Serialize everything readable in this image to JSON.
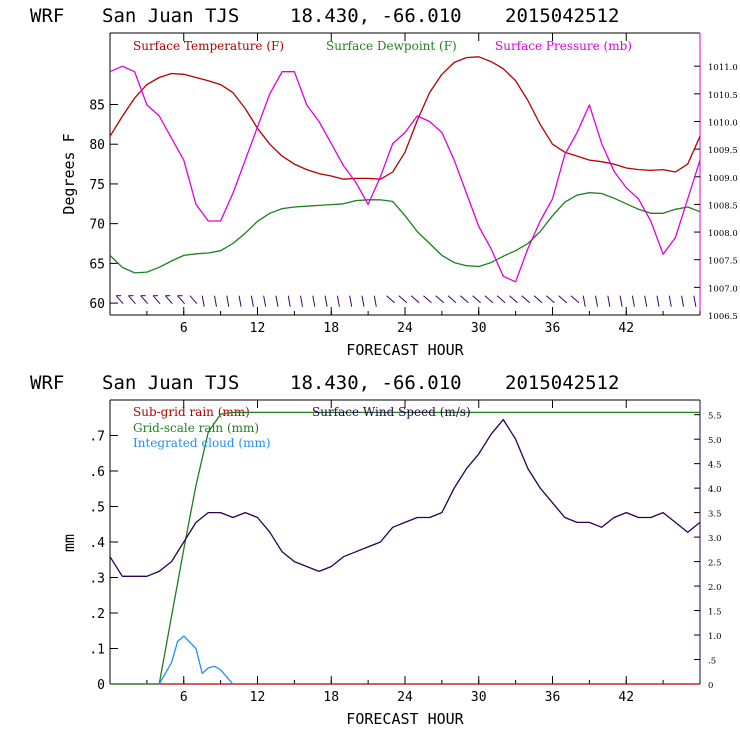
{
  "charts": [
    {
      "header": {
        "model": "WRF",
        "station": "San Juan TJS",
        "coords": "18.430, -66.010",
        "run": "2015042512"
      },
      "xlabel": "FORECAST HOUR",
      "ylabel": "Degrees F"
    },
    {
      "header": {
        "model": "WRF",
        "station": "San Juan TJS",
        "coords": "18.430, -66.010",
        "run": "2015042512"
      },
      "xlabel": "FORECAST HOUR",
      "ylabel": "mm"
    }
  ],
  "chart_data": [
    {
      "type": "line",
      "x_ticks": [
        "6",
        "12",
        "18",
        "24",
        "30",
        "36",
        "42"
      ],
      "xlim": [
        0,
        48
      ],
      "ylim": [
        58.5,
        94
      ],
      "y_ticks": [
        "60",
        "65",
        "70",
        "75",
        "80",
        "85"
      ],
      "y2lim": [
        1006.5,
        1011.6
      ],
      "y2_ticks": [
        "1006.5",
        "1007.0",
        "1007.5",
        "1008.0",
        "1008.5",
        "1009.0",
        "1009.5",
        "1010.0",
        "1010.5",
        "1011.0"
      ],
      "series": [
        {
          "name": "Surface Temperature (F)",
          "axis": "left",
          "color": "#b40000",
          "points": [
            [
              0,
              81
            ],
            [
              1,
              83.5
            ],
            [
              2,
              85.8
            ],
            [
              3,
              87.5
            ],
            [
              4,
              88.4
            ],
            [
              5,
              88.9
            ],
            [
              6,
              88.8
            ],
            [
              7,
              88.4
            ],
            [
              8,
              88
            ],
            [
              9,
              87.5
            ],
            [
              10,
              86.5
            ],
            [
              11,
              84.5
            ],
            [
              12,
              82
            ],
            [
              13,
              80
            ],
            [
              14,
              78.5
            ],
            [
              15,
              77.5
            ],
            [
              16,
              76.8
            ],
            [
              17,
              76.3
            ],
            [
              18,
              76
            ],
            [
              19,
              75.6
            ],
            [
              20,
              75.7
            ],
            [
              21,
              75.7
            ],
            [
              22,
              75.6
            ],
            [
              23,
              76.5
            ],
            [
              24,
              79
            ],
            [
              25,
              83
            ],
            [
              26,
              86.5
            ],
            [
              27,
              88.8
            ],
            [
              28,
              90.3
            ],
            [
              29,
              90.9
            ],
            [
              30,
              91
            ],
            [
              31,
              90.4
            ],
            [
              32,
              89.5
            ],
            [
              33,
              88
            ],
            [
              34,
              85.5
            ],
            [
              35,
              82.5
            ],
            [
              36,
              80
            ],
            [
              37,
              79
            ],
            [
              38,
              78.5
            ],
            [
              39,
              78
            ],
            [
              40,
              77.8
            ],
            [
              41,
              77.5
            ],
            [
              42,
              77
            ],
            [
              43,
              76.8
            ],
            [
              44,
              76.7
            ],
            [
              45,
              76.8
            ],
            [
              46,
              76.5
            ],
            [
              47,
              77.5
            ],
            [
              48,
              81
            ]
          ]
        },
        {
          "name": "Surface Dewpoint (F)",
          "axis": "left",
          "color": "#1f7f1f",
          "points": [
            [
              0,
              66
            ],
            [
              1,
              64.5
            ],
            [
              2,
              63.8
            ],
            [
              3,
              63.9
            ],
            [
              4,
              64.5
            ],
            [
              5,
              65.3
            ],
            [
              6,
              66
            ],
            [
              7,
              66.2
            ],
            [
              8,
              66.3
            ],
            [
              9,
              66.6
            ],
            [
              10,
              67.5
            ],
            [
              11,
              68.8
            ],
            [
              12,
              70.3
            ],
            [
              13,
              71.3
            ],
            [
              14,
              71.9
            ],
            [
              15,
              72.1
            ],
            [
              16,
              72.2
            ],
            [
              17,
              72.3
            ],
            [
              18,
              72.4
            ],
            [
              19,
              72.5
            ],
            [
              20,
              72.9
            ],
            [
              21,
              73
            ],
            [
              22,
              73
            ],
            [
              23,
              72.8
            ],
            [
              24,
              71
            ],
            [
              25,
              69
            ],
            [
              26,
              67.5
            ],
            [
              27,
              66
            ],
            [
              28,
              65.1
            ],
            [
              29,
              64.7
            ],
            [
              30,
              64.6
            ],
            [
              31,
              65.1
            ],
            [
              32,
              65.9
            ],
            [
              33,
              66.6
            ],
            [
              34,
              67.5
            ],
            [
              35,
              69
            ],
            [
              36,
              71
            ],
            [
              37,
              72.7
            ],
            [
              38,
              73.6
            ],
            [
              39,
              73.9
            ],
            [
              40,
              73.8
            ],
            [
              41,
              73.2
            ],
            [
              42,
              72.5
            ],
            [
              43,
              71.8
            ],
            [
              44,
              71.3
            ],
            [
              45,
              71.3
            ],
            [
              46,
              71.8
            ],
            [
              47,
              72.1
            ],
            [
              48,
              71.5
            ]
          ]
        },
        {
          "name": "Surface Pressure (mb)",
          "axis": "right",
          "color": "#e000e0",
          "points": [
            [
              0,
              1010.9
            ],
            [
              1,
              1011
            ],
            [
              2,
              1010.9
            ],
            [
              3,
              1010.3
            ],
            [
              4,
              1010.1
            ],
            [
              5,
              1009.7
            ],
            [
              6,
              1009.3
            ],
            [
              7,
              1008.5
            ],
            [
              8,
              1008.2
            ],
            [
              9,
              1008.2
            ],
            [
              10,
              1008.7
            ],
            [
              11,
              1009.3
            ],
            [
              12,
              1009.9
            ],
            [
              13,
              1010.5
            ],
            [
              14,
              1010.9
            ],
            [
              15,
              1010.9
            ],
            [
              16,
              1010.3
            ],
            [
              17,
              1010.0
            ],
            [
              18,
              1009.6
            ],
            [
              19,
              1009.2
            ],
            [
              20,
              1008.9
            ],
            [
              21,
              1008.5
            ],
            [
              22,
              1009.0
            ],
            [
              23,
              1009.6
            ],
            [
              24,
              1009.8
            ],
            [
              25,
              1010.1
            ],
            [
              26,
              1010.0
            ],
            [
              27,
              1009.8
            ],
            [
              28,
              1009.3
            ],
            [
              29,
              1008.7
            ],
            [
              30,
              1008.1
            ],
            [
              31,
              1007.7
            ],
            [
              32,
              1007.2
            ],
            [
              33,
              1007.1
            ],
            [
              34,
              1007.7
            ],
            [
              35,
              1008.2
            ],
            [
              36,
              1008.6
            ],
            [
              37,
              1009.4
            ],
            [
              38,
              1009.8
            ],
            [
              39,
              1010.3
            ],
            [
              40,
              1009.6
            ],
            [
              41,
              1009.1
            ],
            [
              42,
              1008.8
            ],
            [
              43,
              1008.6
            ],
            [
              44,
              1008.2
            ],
            [
              45,
              1007.6
            ],
            [
              46,
              1007.9
            ],
            [
              47,
              1008.6
            ],
            [
              48,
              1009.3
            ]
          ]
        }
      ],
      "wind_barbs": true,
      "legend": "top"
    },
    {
      "type": "line",
      "x_ticks": [
        "6",
        "12",
        "18",
        "24",
        "30",
        "36",
        "42"
      ],
      "xlim": [
        0,
        48
      ],
      "ylim": [
        0,
        0.8
      ],
      "y_ticks": [
        "0",
        ".1",
        ".2",
        ".3",
        ".4",
        ".5",
        ".6",
        ".7"
      ],
      "y2lim": [
        0,
        5.8
      ],
      "y2_ticks": [
        "0",
        ".5",
        "1.0",
        "1.5",
        "2.0",
        "2.5",
        "3.0",
        "3.5",
        "4.0",
        "4.5",
        "5.0",
        "5.5"
      ],
      "series": [
        {
          "name": "Sub-grid rain (mm)",
          "axis": "left",
          "color": "#b40000",
          "points": [
            [
              0,
              0
            ],
            [
              48,
              0
            ]
          ]
        },
        {
          "name": "Grid-scale rain (mm)",
          "axis": "left",
          "color": "#1f7f1f",
          "points": [
            [
              0,
              0
            ],
            [
              4,
              0
            ],
            [
              5,
              0.19
            ],
            [
              6,
              0.38
            ],
            [
              7,
              0.56
            ],
            [
              8,
              0.71
            ],
            [
              9,
              0.76
            ],
            [
              10,
              0.765
            ],
            [
              48,
              0.765
            ]
          ]
        },
        {
          "name": "Integrated cloud (mm)",
          "axis": "left",
          "color": "#1e90ff",
          "points": [
            [
              4,
              0
            ],
            [
              5,
              0.06
            ],
            [
              5.5,
              0.12
            ],
            [
              6,
              0.135
            ],
            [
              7,
              0.1
            ],
            [
              7.5,
              0.03
            ],
            [
              8,
              0.045
            ],
            [
              8.5,
              0.05
            ],
            [
              9,
              0.04
            ],
            [
              10,
              0
            ]
          ]
        },
        {
          "name": "Surface Wind Speed (m/s)",
          "axis": "right",
          "color": "#2a0050",
          "points": [
            [
              0,
              2.6
            ],
            [
              1,
              2.2
            ],
            [
              2,
              2.2
            ],
            [
              3,
              2.2
            ],
            [
              4,
              2.3
            ],
            [
              5,
              2.5
            ],
            [
              6,
              2.9
            ],
            [
              7,
              3.3
            ],
            [
              8,
              3.5
            ],
            [
              9,
              3.5
            ],
            [
              10,
              3.4
            ],
            [
              11,
              3.5
            ],
            [
              12,
              3.4
            ],
            [
              13,
              3.1
            ],
            [
              14,
              2.7
            ],
            [
              15,
              2.5
            ],
            [
              16,
              2.4
            ],
            [
              17,
              2.3
            ],
            [
              18,
              2.4
            ],
            [
              19,
              2.6
            ],
            [
              20,
              2.7
            ],
            [
              21,
              2.8
            ],
            [
              22,
              2.9
            ],
            [
              23,
              3.2
            ],
            [
              24,
              3.3
            ],
            [
              25,
              3.4
            ],
            [
              26,
              3.4
            ],
            [
              27,
              3.5
            ],
            [
              28,
              4.0
            ],
            [
              29,
              4.4
            ],
            [
              30,
              4.7
            ],
            [
              31,
              5.1
            ],
            [
              32,
              5.4
            ],
            [
              33,
              5.0
            ],
            [
              34,
              4.4
            ],
            [
              35,
              4.0
            ],
            [
              36,
              3.7
            ],
            [
              37,
              3.4
            ],
            [
              38,
              3.3
            ],
            [
              39,
              3.3
            ],
            [
              40,
              3.2
            ],
            [
              41,
              3.4
            ],
            [
              42,
              3.5
            ],
            [
              43,
              3.4
            ],
            [
              44,
              3.4
            ],
            [
              45,
              3.5
            ],
            [
              46,
              3.3
            ],
            [
              47,
              3.1
            ],
            [
              48,
              3.3
            ]
          ]
        }
      ],
      "legend": "top-left"
    }
  ]
}
